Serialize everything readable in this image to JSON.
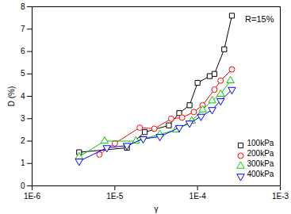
{
  "chart_data": {
    "type": "line",
    "annotation": "R=15%",
    "x_label": "γ",
    "y_label": "D (%)",
    "log": "x",
    "xlim": [
      1e-06,
      0.001
    ],
    "xticks": [
      {
        "value": 1e-06,
        "label": "1E-6"
      },
      {
        "value": 1e-05,
        "label": "1E-5"
      },
      {
        "value": 0.0001,
        "label": "1E-4"
      },
      {
        "value": 0.001,
        "label": "1E-3"
      }
    ],
    "ylim": [
      0,
      8
    ],
    "yticks": [
      0,
      1,
      2,
      3,
      4,
      5,
      6,
      7,
      8
    ],
    "legend": "lower right",
    "series": [
      {
        "name": "100kPa",
        "color": "#000000",
        "marker": "square",
        "x": [
          3.7e-06,
          1.4e-05,
          2.3e-05,
          4.5e-05,
          6e-05,
          8e-05,
          0.0001,
          0.00014,
          0.00016,
          0.00021,
          0.00026
        ],
        "values": [
          1.5,
          1.7,
          2.4,
          2.7,
          3.25,
          3.6,
          4.6,
          4.9,
          5.0,
          6.1,
          7.6
        ]
      },
      {
        "name": "200kPa",
        "color": "#ff0000",
        "marker": "circle",
        "x": [
          6.5e-06,
          1e-05,
          2e-05,
          3e-05,
          4.8e-05,
          6.5e-05,
          9e-05,
          0.000115,
          0.00016,
          0.00019,
          0.00026
        ],
        "values": [
          1.4,
          1.9,
          2.6,
          2.55,
          3.0,
          3.05,
          3.3,
          3.6,
          4.3,
          4.7,
          5.2
        ]
      },
      {
        "name": "300kPa",
        "color": "#00cc00",
        "marker": "triangle",
        "x": [
          3.7e-06,
          7.5e-06,
          1.8e-05,
          3.5e-05,
          5.5e-05,
          8.5e-05,
          0.000115,
          0.00015,
          0.00019,
          0.00025
        ],
        "values": [
          1.3,
          2.0,
          2.0,
          2.3,
          2.5,
          2.9,
          3.4,
          3.8,
          4.1,
          4.7
        ]
      },
      {
        "name": "400kPa",
        "color": "#0000ff",
        "marker": "triangle-down",
        "x": [
          3.7e-06,
          8e-06,
          1.4e-05,
          2.2e-05,
          3.5e-05,
          6e-05,
          8e-05,
          0.00011,
          0.00015,
          0.00019,
          0.00026
        ],
        "values": [
          1.1,
          1.7,
          1.8,
          2.1,
          2.2,
          2.6,
          2.8,
          3.1,
          3.4,
          3.8,
          4.3
        ]
      }
    ]
  }
}
